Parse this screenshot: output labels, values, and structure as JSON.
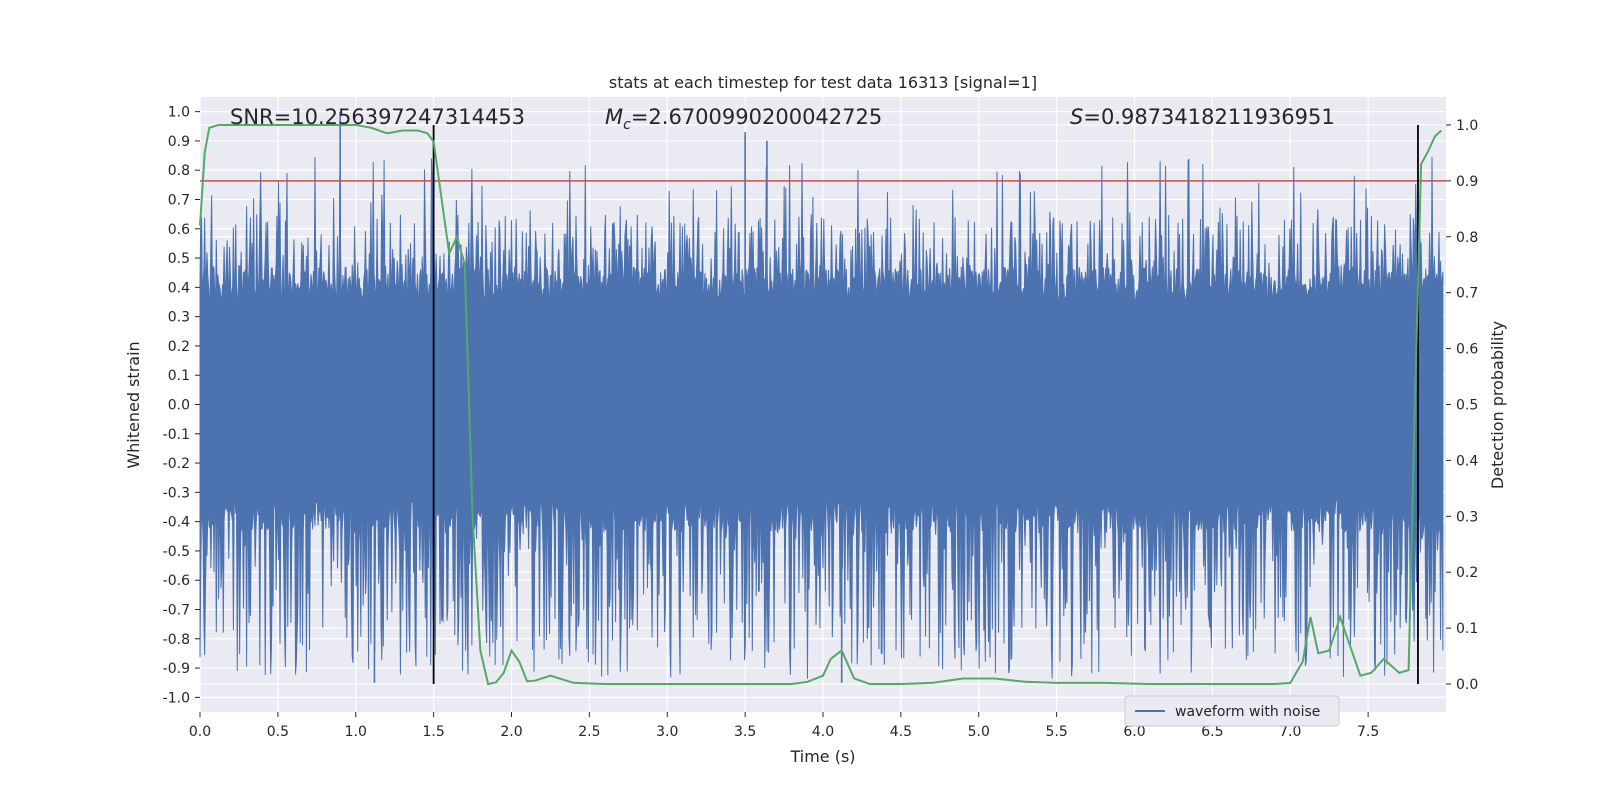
{
  "chart_data": {
    "type": "line",
    "title": "stats at each timestep for test data 16313 [signal=1]",
    "xlabel": "Time (s)",
    "ylabel": "Whitened strain",
    "y2label": "Detection probability",
    "xlim": [
      0.0,
      8.0
    ],
    "ylim": [
      -1.05,
      1.05
    ],
    "y2lim": [
      -0.05,
      1.05
    ],
    "x_ticks": [
      "0.0",
      "0.5",
      "1.0",
      "1.5",
      "2.0",
      "2.5",
      "3.0",
      "3.5",
      "4.0",
      "4.5",
      "5.0",
      "5.5",
      "6.0",
      "6.5",
      "7.0",
      "7.5"
    ],
    "y_ticks": [
      "1.0",
      "0.9",
      "0.8",
      "0.7",
      "0.6",
      "0.5",
      "0.4",
      "0.3",
      "0.2",
      "0.1",
      "0.0",
      "-0.1",
      "-0.2",
      "-0.3",
      "-0.4",
      "-0.5",
      "-0.6",
      "-0.7",
      "-0.8",
      "-0.9",
      "-1.0"
    ],
    "y2_ticks": [
      "1.0",
      "0.9",
      "0.8",
      "0.7",
      "0.6",
      "0.5",
      "0.4",
      "0.3",
      "0.2",
      "0.1",
      "0.0"
    ],
    "grid": true,
    "annotations": {
      "snr": "SNR=10.256397247314453",
      "mc_symbol": "M",
      "mc_sub": "c",
      "mc_value": "=2.6700990200042725",
      "s_symbol": "S",
      "s_value": "=0.9873418211936951"
    },
    "vertical_lines_x": [
      1.5,
      7.82
    ],
    "threshold_y2": 0.9,
    "series": [
      {
        "name": "waveform with noise",
        "kind": "noise",
        "color": "#4c72b0",
        "envelope": {
          "dense_band": [
            -0.32,
            0.35
          ],
          "typical_peaks": [
            -0.6,
            0.6
          ],
          "max_spike": 1.0,
          "min_spike": -0.95
        }
      },
      {
        "name": "Detection probability",
        "kind": "probability",
        "color": "#55a868",
        "axis": "right",
        "x": [
          0.0,
          0.03,
          0.06,
          0.12,
          0.2,
          0.4,
          0.6,
          0.8,
          1.0,
          1.1,
          1.2,
          1.3,
          1.4,
          1.46,
          1.5,
          1.55,
          1.6,
          1.65,
          1.7,
          1.75,
          1.8,
          1.85,
          1.9,
          1.95,
          2.0,
          2.05,
          2.1,
          2.15,
          2.25,
          2.4,
          2.6,
          2.8,
          3.0,
          3.3,
          3.6,
          3.8,
          3.9,
          4.0,
          4.05,
          4.12,
          4.2,
          4.3,
          4.5,
          4.7,
          4.9,
          5.1,
          5.3,
          5.5,
          5.8,
          6.1,
          6.5,
          6.9,
          7.0,
          7.08,
          7.13,
          7.18,
          7.25,
          7.32,
          7.45,
          7.52,
          7.6,
          7.7,
          7.76,
          7.8,
          7.84,
          7.88,
          7.93,
          7.97
        ],
        "values": [
          0.82,
          0.95,
          0.995,
          1.0,
          1.0,
          1.0,
          1.0,
          1.0,
          1.0,
          0.995,
          0.985,
          0.99,
          0.99,
          0.985,
          0.97,
          0.87,
          0.77,
          0.8,
          0.75,
          0.3,
          0.06,
          0.0,
          0.003,
          0.02,
          0.06,
          0.04,
          0.005,
          0.006,
          0.015,
          0.002,
          0.0,
          0.0,
          0.0,
          0.0,
          0.0,
          0.0,
          0.004,
          0.015,
          0.045,
          0.06,
          0.01,
          0.0,
          0.0,
          0.002,
          0.01,
          0.01,
          0.004,
          0.002,
          0.002,
          0.0,
          0.0,
          0.0,
          0.002,
          0.04,
          0.12,
          0.055,
          0.06,
          0.12,
          0.015,
          0.02,
          0.045,
          0.02,
          0.025,
          0.5,
          0.93,
          0.95,
          0.98,
          0.99
        ]
      }
    ],
    "legend": {
      "position": "bottom-right",
      "entries": [
        "waveform with noise"
      ]
    }
  },
  "colors": {
    "plot_bg": "#eaeaf2",
    "grid": "#ffffff",
    "noise": "#4c72b0",
    "probability": "#55a868",
    "threshold": "#c44e52",
    "marker_line": "#000000"
  }
}
